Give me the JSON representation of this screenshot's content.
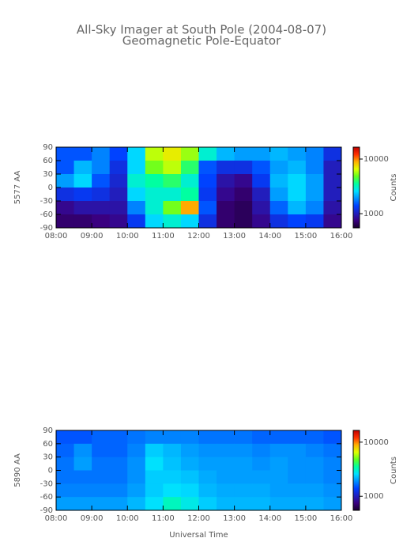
{
  "chart_data": [
    {
      "type": "heatmap",
      "title": "All-Sky Imager at South Pole (2004-08-07)",
      "subtitle": "Geomagnetic Pole-Equator",
      "ylabel": "5577 AA",
      "colorbar_label": "Counts",
      "x": [
        8.25,
        8.75,
        9.25,
        9.75,
        10.25,
        10.75,
        11.25,
        11.75,
        12.25,
        12.75,
        13.25,
        13.75,
        14.25,
        14.75,
        15.25,
        15.75
      ],
      "y": [
        75,
        45,
        15,
        -15,
        -45,
        -75
      ],
      "z": [
        [
          1500,
          1500,
          1800,
          1400,
          2500,
          6000,
          7000,
          5500,
          3000,
          2200,
          2000,
          2000,
          2200,
          2000,
          1800,
          1200
        ],
        [
          1500,
          2200,
          1800,
          1200,
          2500,
          5000,
          6000,
          4000,
          1500,
          1200,
          1200,
          1500,
          2000,
          2200,
          1800,
          1000
        ],
        [
          2000,
          2500,
          1500,
          1100,
          3000,
          3500,
          4000,
          3000,
          1400,
          900,
          800,
          1300,
          2200,
          2500,
          2000,
          1000
        ],
        [
          1200,
          1300,
          1200,
          1000,
          2500,
          3000,
          3000,
          3500,
          1300,
          800,
          700,
          1000,
          2000,
          2500,
          2000,
          1000
        ],
        [
          800,
          900,
          900,
          900,
          1800,
          3000,
          5000,
          9000,
          1500,
          700,
          650,
          900,
          1600,
          2200,
          1800,
          900
        ],
        [
          700,
          700,
          750,
          800,
          1300,
          2500,
          3000,
          2500,
          1200,
          700,
          650,
          800,
          1200,
          1400,
          1300,
          800
        ]
      ],
      "xlim": [
        8,
        16
      ],
      "xticks": [
        {
          "value": 8,
          "label": "08:00"
        },
        {
          "value": 9,
          "label": "09:00"
        },
        {
          "value": 10,
          "label": "10:00"
        },
        {
          "value": 11,
          "label": "11:00"
        },
        {
          "value": 12,
          "label": "12:00"
        },
        {
          "value": 13,
          "label": "13:00"
        },
        {
          "value": 14,
          "label": "14:00"
        },
        {
          "value": 15,
          "label": "15:00"
        },
        {
          "value": 16,
          "label": "16:00"
        }
      ],
      "ylim": [
        -90,
        90
      ],
      "yticks": [
        -90,
        -60,
        -30,
        0,
        30,
        60,
        90
      ],
      "zlim": [
        550,
        16500
      ],
      "zticks": [
        1000,
        10000
      ],
      "zscale": "log",
      "colormap": [
        "#1a0030",
        "#3a0080",
        "#2020c0",
        "#0040ff",
        "#0090ff",
        "#00e0ff",
        "#00ffa0",
        "#60ff20",
        "#e0ff00",
        "#ffb000",
        "#ff3000",
        "#c00000"
      ]
    },
    {
      "type": "heatmap",
      "ylabel": "5890 AA",
      "colorbar_label": "Counts",
      "xlabel": "Universal Time",
      "x": [
        8.25,
        8.75,
        9.25,
        9.75,
        10.25,
        10.75,
        11.25,
        11.75,
        12.25,
        12.75,
        13.25,
        13.75,
        14.25,
        14.75,
        15.25,
        15.75
      ],
      "y": [
        75,
        45,
        15,
        -15,
        -45,
        -75
      ],
      "z": [
        [
          1500,
          1500,
          1600,
          1600,
          1700,
          1800,
          1800,
          1800,
          1700,
          1700,
          1700,
          1600,
          1600,
          1600,
          1600,
          1500
        ],
        [
          1600,
          1900,
          1600,
          1600,
          1800,
          2400,
          2200,
          2000,
          1900,
          1900,
          1900,
          1800,
          1900,
          1900,
          1800,
          1700
        ],
        [
          1700,
          2000,
          1700,
          1700,
          1900,
          2600,
          2300,
          2100,
          2000,
          2000,
          2000,
          1900,
          2000,
          1900,
          1900,
          1800
        ],
        [
          1700,
          1700,
          1700,
          1700,
          1900,
          2400,
          2400,
          2300,
          2100,
          2000,
          2000,
          2000,
          2000,
          1900,
          1900,
          1800
        ],
        [
          1800,
          1800,
          1800,
          1800,
          2000,
          2400,
          2600,
          2500,
          2200,
          2100,
          2100,
          2100,
          2000,
          2000,
          2000,
          1900
        ],
        [
          2000,
          2000,
          2000,
          2000,
          2200,
          2600,
          3200,
          2800,
          2400,
          2200,
          2200,
          2200,
          2100,
          2100,
          2100,
          2000
        ]
      ],
      "xlim": [
        8,
        16
      ],
      "xticks": [
        {
          "value": 8,
          "label": "08:00"
        },
        {
          "value": 9,
          "label": "09:00"
        },
        {
          "value": 10,
          "label": "10:00"
        },
        {
          "value": 11,
          "label": "11:00"
        },
        {
          "value": 12,
          "label": "12:00"
        },
        {
          "value": 13,
          "label": "13:00"
        },
        {
          "value": 14,
          "label": "14:00"
        },
        {
          "value": 15,
          "label": "15:00"
        },
        {
          "value": 16,
          "label": "16:00"
        }
      ],
      "ylim": [
        -90,
        90
      ],
      "yticks": [
        -90,
        -60,
        -30,
        0,
        30,
        60,
        90
      ],
      "zlim": [
        550,
        16500
      ],
      "zticks": [
        1000,
        10000
      ],
      "zscale": "log",
      "colormap": [
        "#1a0030",
        "#3a0080",
        "#2020c0",
        "#0040ff",
        "#0090ff",
        "#00e0ff",
        "#00ffa0",
        "#60ff20",
        "#e0ff00",
        "#ffb000",
        "#ff3000",
        "#c00000"
      ]
    }
  ]
}
